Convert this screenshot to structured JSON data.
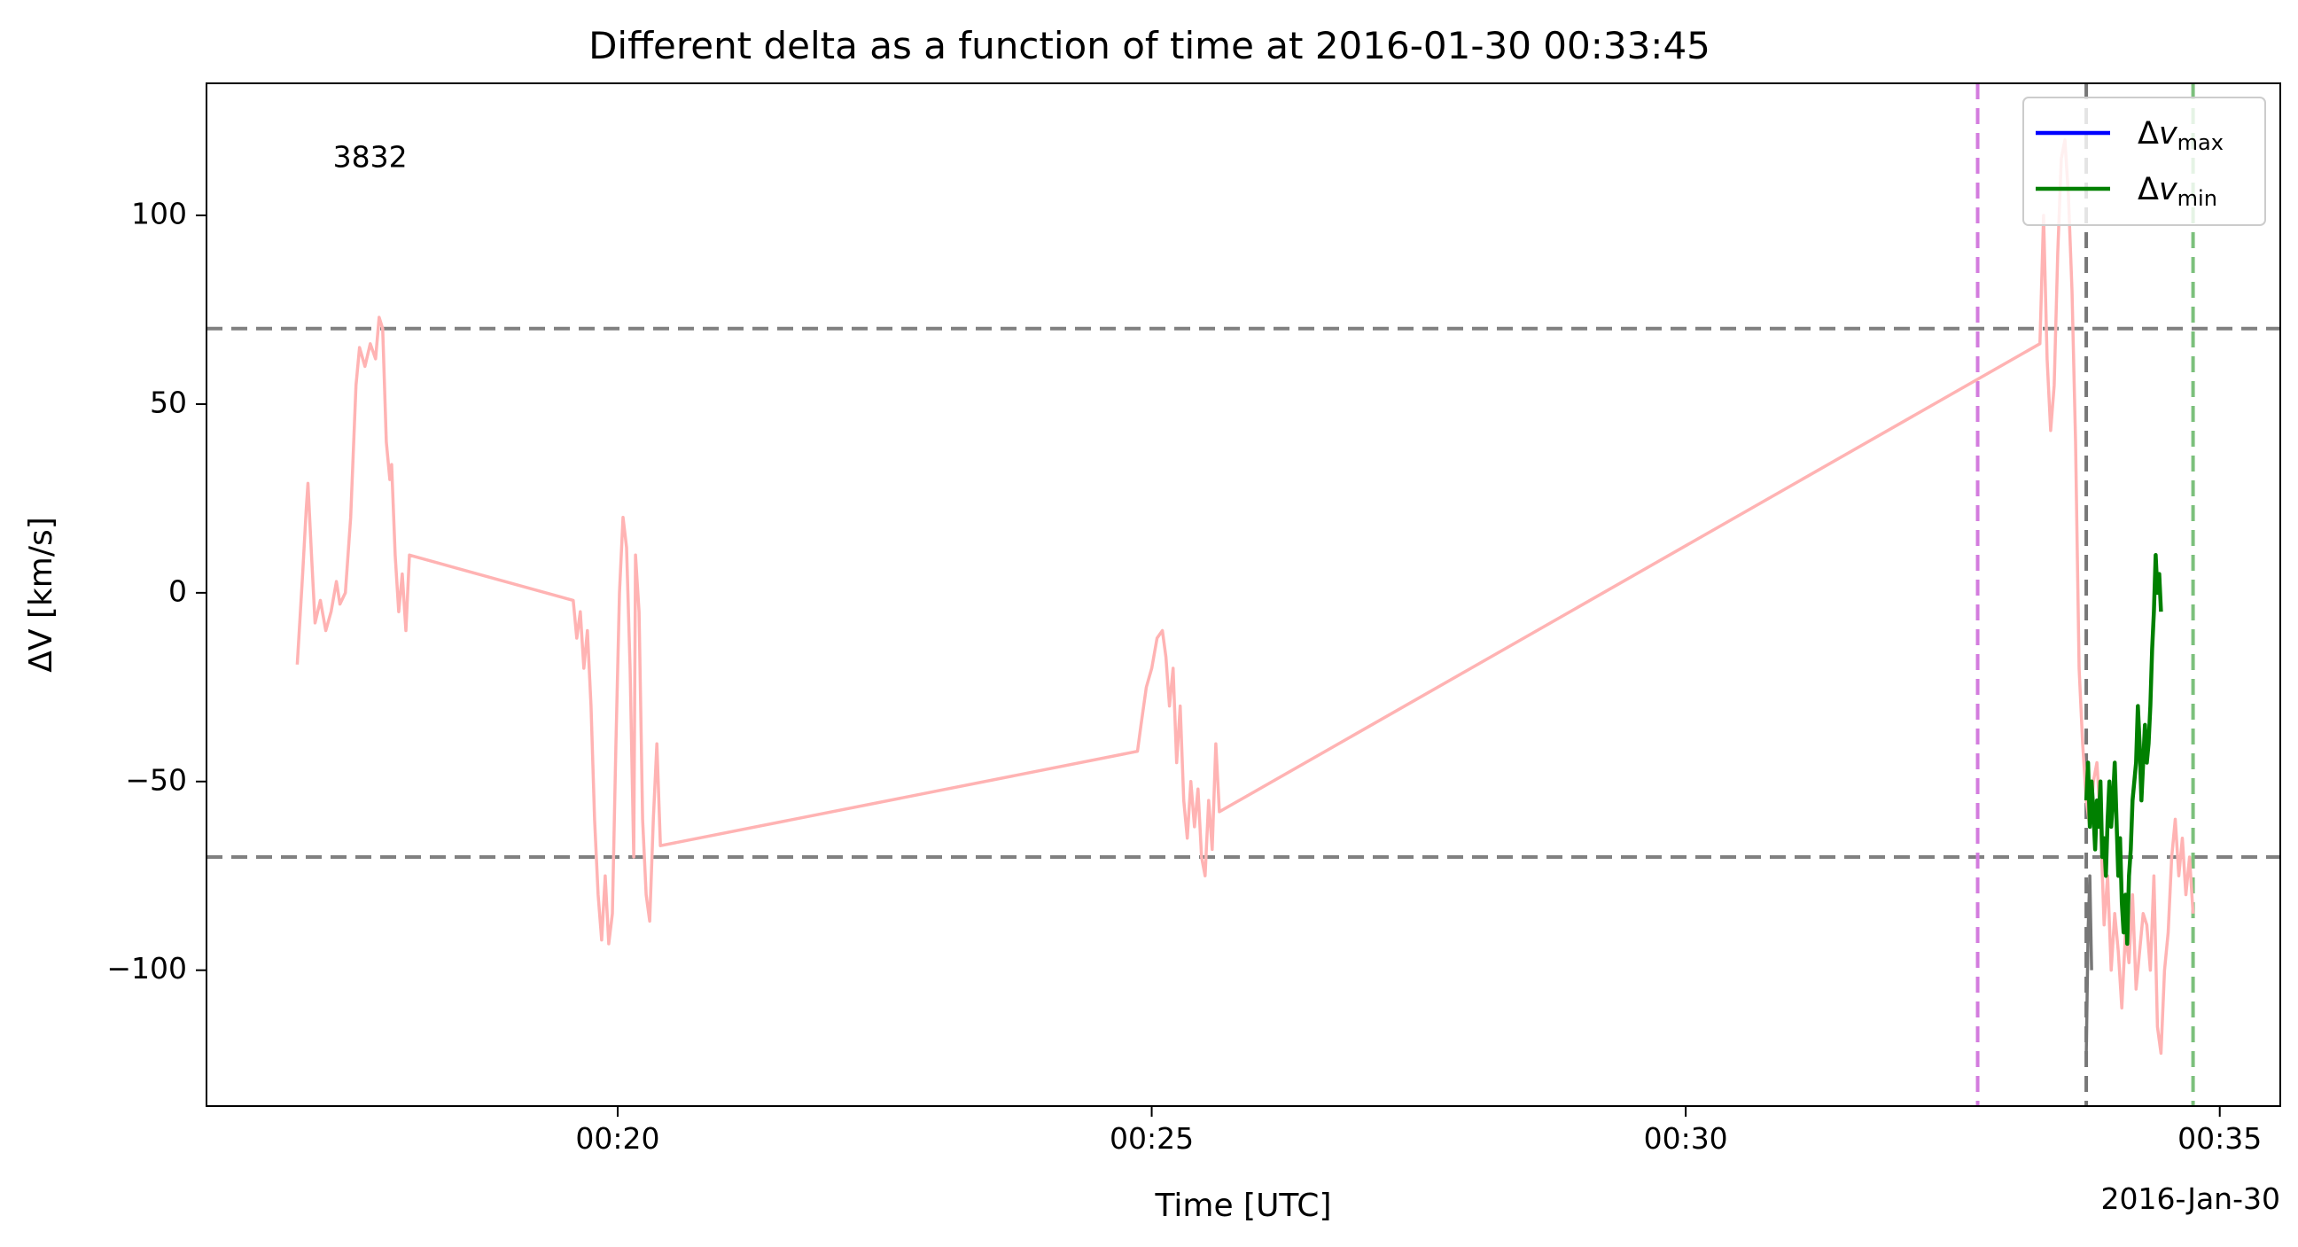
{
  "chart_data": {
    "type": "line",
    "title": "Different delta as a function of time at 2016-01-30 00:33:45",
    "xlabel": "Time [UTC]",
    "ylabel": "ΔV [km/s]",
    "date_label": "2016-Jan-30",
    "annotation": {
      "text": "3832",
      "x": "00:17:20",
      "y": 115,
      "color": "#ff0000"
    },
    "xlim": [
      "00:16:09",
      "00:35:34"
    ],
    "ylim": [
      -136,
      135
    ],
    "xticks": [
      {
        "label": "00:20",
        "value": "00:20:00"
      },
      {
        "label": "00:25",
        "value": "00:25:00"
      },
      {
        "label": "00:30",
        "value": "00:30:00"
      },
      {
        "label": "00:35",
        "value": "00:35:00"
      }
    ],
    "yticks": [
      {
        "label": "100",
        "value": 100
      },
      {
        "label": "50",
        "value": 50
      },
      {
        "label": "0",
        "value": 0
      },
      {
        "label": "−50",
        "value": -50
      },
      {
        "label": "−100",
        "value": -100
      }
    ],
    "hlines": [
      {
        "y": 70,
        "color": "#808080",
        "style": "dashed"
      },
      {
        "y": -70,
        "color": "#808080",
        "style": "dashed"
      }
    ],
    "vlines": [
      {
        "x": "00:32:44",
        "color": "#d37cde",
        "style": "dashed"
      },
      {
        "x": "00:33:45",
        "color": "#777777",
        "style": "dashed"
      },
      {
        "x": "00:34:45",
        "color": "#7cc07c",
        "style": "dashed"
      }
    ],
    "legend": {
      "position": "upper right",
      "entries": [
        {
          "main": "Δ",
          "var": "v",
          "sub": "max",
          "color": "#0000ff"
        },
        {
          "main": "Δ",
          "var": "v",
          "sub": "min",
          "color": "#008000"
        }
      ]
    },
    "series": [
      {
        "color": "#ffb3b3",
        "points": [
          [
            "00:17:00",
            -19
          ],
          [
            "00:17:03",
            5
          ],
          [
            "00:17:05",
            22
          ],
          [
            "00:17:06",
            29
          ],
          [
            "00:17:08",
            10
          ],
          [
            "00:17:10",
            -8
          ],
          [
            "00:17:13",
            -2
          ],
          [
            "00:17:16",
            -10
          ],
          [
            "00:17:19",
            -5
          ],
          [
            "00:17:22",
            3
          ],
          [
            "00:17:24",
            -3
          ],
          [
            "00:17:27",
            0
          ],
          [
            "00:17:30",
            20
          ],
          [
            "00:17:33",
            55
          ],
          [
            "00:17:35",
            65
          ],
          [
            "00:17:38",
            60
          ],
          [
            "00:17:41",
            66
          ],
          [
            "00:17:44",
            62
          ],
          [
            "00:17:46",
            73
          ],
          [
            "00:17:48",
            70
          ],
          [
            "00:17:50",
            40
          ],
          [
            "00:17:52",
            30
          ],
          [
            "00:17:53",
            34
          ],
          [
            "00:17:55",
            10
          ],
          [
            "00:17:57",
            -5
          ],
          [
            "00:17:59",
            5
          ],
          [
            "00:18:01",
            -10
          ],
          [
            "00:18:03",
            10
          ],
          [
            "00:19:35",
            -2
          ],
          [
            "00:19:37",
            -12
          ],
          [
            "00:19:39",
            -5
          ],
          [
            "00:19:41",
            -20
          ],
          [
            "00:19:43",
            -10
          ],
          [
            "00:19:45",
            -30
          ],
          [
            "00:19:47",
            -60
          ],
          [
            "00:19:49",
            -80
          ],
          [
            "00:19:51",
            -92
          ],
          [
            "00:19:53",
            -75
          ],
          [
            "00:19:55",
            -93
          ],
          [
            "00:19:57",
            -85
          ],
          [
            "00:19:59",
            -40
          ],
          [
            "00:20:01",
            0
          ],
          [
            "00:20:03",
            20
          ],
          [
            "00:20:05",
            12
          ],
          [
            "00:20:07",
            -20
          ],
          [
            "00:20:09",
            -70
          ],
          [
            "00:20:10",
            10
          ],
          [
            "00:20:12",
            -5
          ],
          [
            "00:20:14",
            -60
          ],
          [
            "00:20:16",
            -80
          ],
          [
            "00:20:18",
            -87
          ],
          [
            "00:20:20",
            -60
          ],
          [
            "00:20:22",
            -40
          ],
          [
            "00:20:24",
            -67
          ],
          [
            "00:24:52",
            -42
          ],
          [
            "00:24:54",
            -35
          ],
          [
            "00:24:57",
            -25
          ],
          [
            "00:25:00",
            -20
          ],
          [
            "00:25:03",
            -12
          ],
          [
            "00:25:06",
            -10
          ],
          [
            "00:25:08",
            -17
          ],
          [
            "00:25:10",
            -30
          ],
          [
            "00:25:12",
            -20
          ],
          [
            "00:25:14",
            -45
          ],
          [
            "00:25:16",
            -30
          ],
          [
            "00:25:18",
            -55
          ],
          [
            "00:25:20",
            -65
          ],
          [
            "00:25:22",
            -50
          ],
          [
            "00:25:24",
            -62
          ],
          [
            "00:25:26",
            -52
          ],
          [
            "00:25:28",
            -70
          ],
          [
            "00:25:30",
            -75
          ],
          [
            "00:25:32",
            -55
          ],
          [
            "00:25:34",
            -68
          ],
          [
            "00:25:36",
            -40
          ],
          [
            "00:25:38",
            -58
          ],
          [
            "00:33:19",
            66
          ],
          [
            "00:33:21",
            100
          ],
          [
            "00:33:23",
            62
          ],
          [
            "00:33:25",
            43
          ],
          [
            "00:33:27",
            55
          ],
          [
            "00:33:29",
            90
          ],
          [
            "00:33:31",
            115
          ],
          [
            "00:33:33",
            120
          ],
          [
            "00:33:35",
            105
          ],
          [
            "00:33:37",
            80
          ],
          [
            "00:33:39",
            40
          ],
          [
            "00:33:41",
            -20
          ],
          [
            "00:33:43",
            -40
          ],
          [
            "00:33:45",
            -55
          ],
          [
            "00:33:47",
            -62
          ],
          [
            "00:33:49",
            -50
          ],
          [
            "00:33:51",
            -45
          ],
          [
            "00:33:53",
            -60
          ],
          [
            "00:33:55",
            -88
          ],
          [
            "00:33:57",
            -75
          ],
          [
            "00:33:59",
            -100
          ],
          [
            "00:34:01",
            -85
          ],
          [
            "00:34:03",
            -95
          ],
          [
            "00:34:05",
            -110
          ],
          [
            "00:34:07",
            -90
          ],
          [
            "00:34:09",
            -98
          ],
          [
            "00:34:11",
            -80
          ],
          [
            "00:34:13",
            -105
          ],
          [
            "00:34:15",
            -95
          ],
          [
            "00:34:17",
            -85
          ],
          [
            "00:34:19",
            -88
          ],
          [
            "00:34:21",
            -100
          ],
          [
            "00:34:23",
            -75
          ],
          [
            "00:34:25",
            -115
          ],
          [
            "00:34:27",
            -122
          ],
          [
            "00:34:29",
            -100
          ],
          [
            "00:34:31",
            -90
          ],
          [
            "00:34:33",
            -70
          ],
          [
            "00:34:35",
            -60
          ],
          [
            "00:34:37",
            -75
          ],
          [
            "00:34:39",
            -65
          ],
          [
            "00:34:41",
            -80
          ],
          [
            "00:34:43",
            -70
          ],
          [
            "00:34:45",
            -85
          ]
        ]
      },
      {
        "color": "#777777",
        "points": [
          [
            "00:33:45",
            -122
          ],
          [
            "00:33:46",
            -90
          ],
          [
            "00:33:47",
            -75
          ],
          [
            "00:33:48",
            -100
          ]
        ]
      },
      {
        "name": "Δv_min",
        "color": "#008000",
        "points": [
          [
            "00:33:45",
            -55
          ],
          [
            "00:33:46",
            -45
          ],
          [
            "00:33:47",
            -62
          ],
          [
            "00:33:48",
            -50
          ],
          [
            "00:33:49",
            -58
          ],
          [
            "00:33:50",
            -68
          ],
          [
            "00:33:51",
            -55
          ],
          [
            "00:33:52",
            -62
          ],
          [
            "00:33:53",
            -50
          ],
          [
            "00:33:54",
            -70
          ],
          [
            "00:33:55",
            -65
          ],
          [
            "00:33:56",
            -75
          ],
          [
            "00:33:57",
            -60
          ],
          [
            "00:33:58",
            -50
          ],
          [
            "00:33:59",
            -62
          ],
          [
            "00:34:00",
            -55
          ],
          [
            "00:34:01",
            -45
          ],
          [
            "00:34:02",
            -60
          ],
          [
            "00:34:03",
            -75
          ],
          [
            "00:34:04",
            -65
          ],
          [
            "00:34:05",
            -82
          ],
          [
            "00:34:06",
            -90
          ],
          [
            "00:34:07",
            -80
          ],
          [
            "00:34:08",
            -93
          ],
          [
            "00:34:09",
            -75
          ],
          [
            "00:34:10",
            -68
          ],
          [
            "00:34:11",
            -55
          ],
          [
            "00:34:12",
            -50
          ],
          [
            "00:34:13",
            -45
          ],
          [
            "00:34:14",
            -30
          ],
          [
            "00:34:15",
            -40
          ],
          [
            "00:34:16",
            -55
          ],
          [
            "00:34:17",
            -45
          ],
          [
            "00:34:18",
            -35
          ],
          [
            "00:34:19",
            -45
          ],
          [
            "00:34:20",
            -40
          ],
          [
            "00:34:21",
            -30
          ],
          [
            "00:34:22",
            -15
          ],
          [
            "00:34:23",
            -5
          ],
          [
            "00:34:24",
            10
          ],
          [
            "00:34:25",
            0
          ],
          [
            "00:34:26",
            5
          ],
          [
            "00:34:27",
            -5
          ]
        ]
      }
    ]
  }
}
